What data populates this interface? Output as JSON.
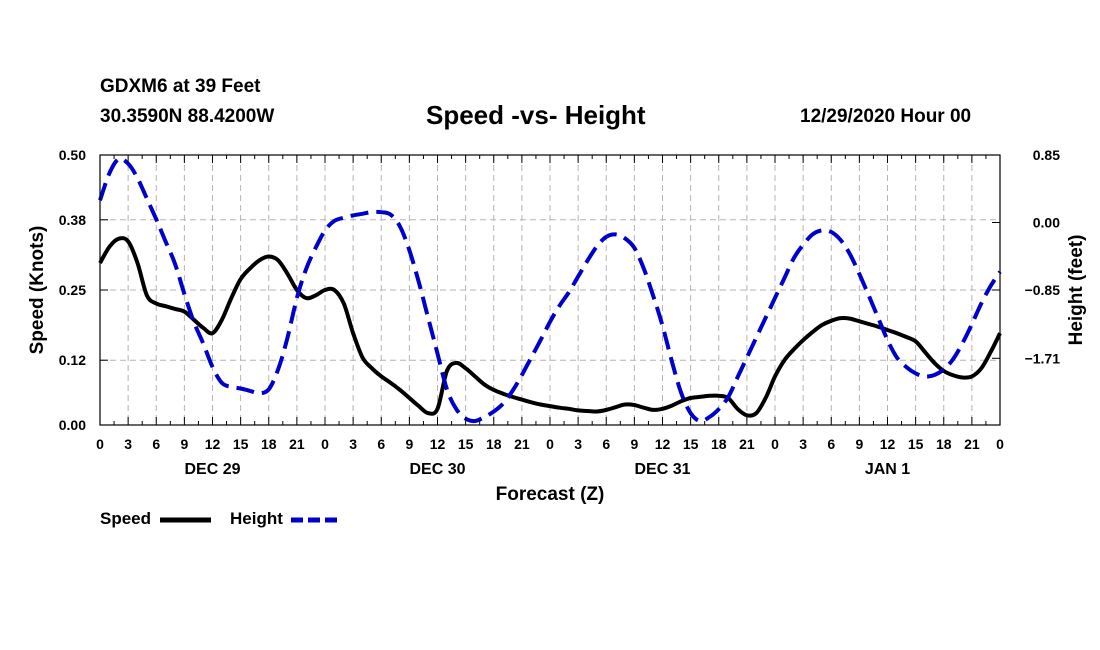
{
  "header": {
    "station": "GDXM6 at 39 Feet",
    "location": "30.3590N 88.4200W",
    "title": "Speed -vs- Height",
    "run": "12/29/2020 Hour 00"
  },
  "legend": {
    "speed_label": "Speed",
    "height_label": "Height"
  },
  "colors": {
    "speed": "#000000",
    "height": "#0000cc",
    "grid": "#b4b4b4"
  },
  "chart_data": {
    "type": "line",
    "title": "Speed -vs- Height",
    "xlabel": "Forecast (Z)",
    "ylabel": "Speed (Knots)",
    "y2label": "Height (feet)",
    "xlim": [
      0,
      96
    ],
    "ylim": [
      0,
      0.5
    ],
    "y2lim": [
      -2.55,
      0.85
    ],
    "x_ticks": [
      0,
      3,
      6,
      9,
      12,
      15,
      18,
      21,
      24,
      27,
      30,
      33,
      36,
      39,
      42,
      45,
      48,
      51,
      54,
      57,
      60,
      63,
      66,
      69,
      72,
      75,
      78,
      81,
      84,
      87,
      90,
      93,
      96
    ],
    "x_tick_labels": [
      "0",
      "3",
      "6",
      "9",
      "12",
      "15",
      "18",
      "21",
      "0",
      "3",
      "6",
      "9",
      "12",
      "15",
      "18",
      "21",
      "0",
      "3",
      "6",
      "9",
      "12",
      "15",
      "18",
      "21",
      "0",
      "3",
      "6",
      "9",
      "12",
      "15",
      "18",
      "21",
      "0"
    ],
    "day_labels": [
      {
        "x": 12,
        "label": "DEC 29"
      },
      {
        "x": 36,
        "label": "DEC 30"
      },
      {
        "x": 60,
        "label": "DEC 31"
      },
      {
        "x": 84,
        "label": "JAN 1"
      }
    ],
    "y_ticks": [
      0.0,
      0.12,
      0.25,
      0.38,
      0.5
    ],
    "y_tick_labels": [
      "0.00",
      "0.12",
      "0.25",
      "0.38",
      "0.50"
    ],
    "y2_ticks": [
      0.85,
      0.0,
      -0.85,
      -1.71
    ],
    "y2_tick_labels": [
      "0.85",
      "0.00",
      "−0.85",
      "−1.71"
    ],
    "grid": true,
    "series": [
      {
        "name": "Speed",
        "axis": "left",
        "style": "solid",
        "x": [
          0,
          1,
          2,
          3,
          4,
          5,
          6,
          7,
          8,
          9,
          10,
          11,
          12,
          13,
          14,
          15,
          16,
          17,
          18,
          19,
          20,
          21,
          22,
          23,
          24,
          25,
          26,
          27,
          28,
          29,
          30,
          31,
          32,
          33,
          34,
          35,
          36,
          37,
          38,
          39,
          40,
          41,
          42,
          43,
          44,
          45,
          46,
          47,
          48,
          49,
          50,
          51,
          52,
          53,
          54,
          55,
          56,
          57,
          58,
          59,
          60,
          61,
          62,
          63,
          64,
          65,
          66,
          67,
          68,
          69,
          70,
          71,
          72,
          73,
          74,
          75,
          76,
          77,
          78,
          79,
          80,
          81,
          82,
          83,
          84,
          85,
          86,
          87,
          88,
          89,
          90,
          91,
          92,
          93,
          94,
          95,
          96
        ],
        "values": [
          0.3,
          0.33,
          0.345,
          0.34,
          0.3,
          0.24,
          0.225,
          0.22,
          0.215,
          0.21,
          0.195,
          0.18,
          0.17,
          0.195,
          0.235,
          0.27,
          0.29,
          0.305,
          0.312,
          0.305,
          0.28,
          0.25,
          0.235,
          0.24,
          0.25,
          0.25,
          0.225,
          0.17,
          0.125,
          0.105,
          0.09,
          0.078,
          0.065,
          0.05,
          0.035,
          0.022,
          0.03,
          0.1,
          0.115,
          0.105,
          0.09,
          0.075,
          0.065,
          0.058,
          0.052,
          0.047,
          0.042,
          0.038,
          0.035,
          0.032,
          0.03,
          0.027,
          0.026,
          0.025,
          0.028,
          0.033,
          0.038,
          0.037,
          0.032,
          0.028,
          0.03,
          0.036,
          0.044,
          0.05,
          0.052,
          0.054,
          0.054,
          0.05,
          0.03,
          0.018,
          0.022,
          0.05,
          0.09,
          0.12,
          0.14,
          0.157,
          0.172,
          0.185,
          0.193,
          0.198,
          0.197,
          0.192,
          0.187,
          0.182,
          0.176,
          0.17,
          0.163,
          0.155,
          0.135,
          0.115,
          0.1,
          0.092,
          0.088,
          0.09,
          0.105,
          0.135,
          0.17
        ]
      },
      {
        "name": "Height",
        "axis": "right",
        "style": "dashed",
        "x": [
          0,
          1,
          2,
          3,
          4,
          5,
          6,
          7,
          8,
          9,
          10,
          11,
          12,
          13,
          14,
          15,
          16,
          17,
          18,
          19,
          20,
          21,
          22,
          23,
          24,
          25,
          26,
          27,
          28,
          29,
          30,
          31,
          32,
          33,
          34,
          35,
          36,
          37,
          38,
          39,
          40,
          41,
          42,
          43,
          44,
          45,
          46,
          47,
          48,
          49,
          50,
          51,
          52,
          53,
          54,
          55,
          56,
          57,
          58,
          59,
          60,
          61,
          62,
          63,
          64,
          65,
          66,
          67,
          68,
          69,
          70,
          71,
          72,
          73,
          74,
          75,
          76,
          77,
          78,
          79,
          80,
          81,
          82,
          83,
          84,
          85,
          86,
          87,
          88,
          89,
          90,
          91,
          92,
          93,
          94,
          95,
          96
        ],
        "values": [
          0.28,
          0.62,
          0.8,
          0.74,
          0.56,
          0.3,
          0.04,
          -0.24,
          -0.52,
          -0.9,
          -1.25,
          -1.52,
          -1.82,
          -2.02,
          -2.07,
          -2.09,
          -2.12,
          -2.15,
          -2.1,
          -1.85,
          -1.45,
          -0.95,
          -0.58,
          -0.32,
          -0.1,
          0.02,
          0.06,
          0.09,
          0.11,
          0.13,
          0.13,
          0.1,
          -0.05,
          -0.35,
          -0.75,
          -1.2,
          -1.65,
          -2.1,
          -2.35,
          -2.47,
          -2.5,
          -2.45,
          -2.38,
          -2.28,
          -2.12,
          -1.92,
          -1.7,
          -1.48,
          -1.25,
          -1.05,
          -0.88,
          -0.68,
          -0.48,
          -0.3,
          -0.18,
          -0.15,
          -0.2,
          -0.32,
          -0.58,
          -0.92,
          -1.3,
          -1.75,
          -2.15,
          -2.4,
          -2.5,
          -2.45,
          -2.35,
          -2.2,
          -1.95,
          -1.7,
          -1.45,
          -1.2,
          -0.95,
          -0.7,
          -0.45,
          -0.28,
          -0.15,
          -0.1,
          -0.12,
          -0.22,
          -0.4,
          -0.65,
          -0.92,
          -1.2,
          -1.48,
          -1.7,
          -1.82,
          -1.9,
          -1.94,
          -1.92,
          -1.85,
          -1.72,
          -1.52,
          -1.28,
          -1.02,
          -0.8,
          -0.62
        ]
      }
    ]
  }
}
